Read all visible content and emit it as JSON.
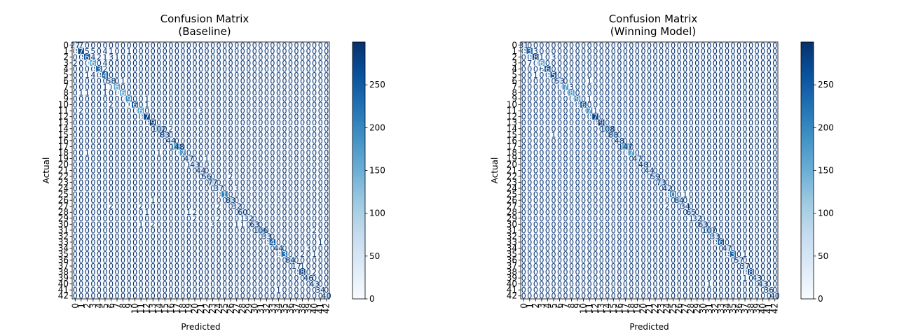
{
  "chart_data": [
    {
      "type": "heatmap",
      "title": "Confusion Matrix",
      "subtitle": "(Baseline)",
      "xlabel": "Predicted",
      "ylabel": "Actual",
      "n_classes": 43,
      "colormap": "Blues",
      "colorbar": {
        "min": 0,
        "max": 300,
        "ticks": [
          0,
          50,
          100,
          150,
          200,
          250
        ]
      },
      "diagonal": [
        27,
        270,
        266,
        164,
        235,
        242,
        58,
        162,
        163,
        196,
        263,
        166,
        278,
        296,
        102,
        83,
        44,
        148,
        172,
        47,
        43,
        44,
        56,
        77,
        37,
        210,
        83,
        32,
        60,
        32,
        63,
        106,
        33,
        247,
        44,
        232,
        84,
        17,
        281,
        46,
        43,
        34,
        40
      ],
      "off_diagonal": [
        {
          "row": 0,
          "col": 1,
          "value": 7
        },
        {
          "row": 1,
          "col": 2,
          "value": 5
        },
        {
          "row": 1,
          "col": 3,
          "value": 5
        },
        {
          "row": 1,
          "col": 5,
          "value": 4
        },
        {
          "row": 1,
          "col": 6,
          "value": 1
        },
        {
          "row": 1,
          "col": 9,
          "value": 1
        },
        {
          "row": 2,
          "col": 3,
          "value": 4
        },
        {
          "row": 2,
          "col": 4,
          "value": 2
        },
        {
          "row": 2,
          "col": 5,
          "value": 1
        },
        {
          "row": 2,
          "col": 6,
          "value": 3
        },
        {
          "row": 2,
          "col": 7,
          "value": 1
        },
        {
          "row": 3,
          "col": 0,
          "value": 2
        },
        {
          "row": 3,
          "col": 5,
          "value": 4
        },
        {
          "row": 4,
          "col": 5,
          "value": 2
        },
        {
          "row": 5,
          "col": 2,
          "value": 1
        },
        {
          "row": 5,
          "col": 3,
          "value": 4
        },
        {
          "row": 6,
          "col": 8,
          "value": 1
        },
        {
          "row": 7,
          "col": 5,
          "value": 1
        },
        {
          "row": 7,
          "col": 6,
          "value": 1
        },
        {
          "row": 8,
          "col": 1,
          "value": 1
        },
        {
          "row": 8,
          "col": 2,
          "value": 1
        },
        {
          "row": 8,
          "col": 5,
          "value": 1
        },
        {
          "row": 9,
          "col": 12,
          "value": 1
        },
        {
          "row": 10,
          "col": 6,
          "value": 2
        },
        {
          "row": 10,
          "col": 9,
          "value": 1
        },
        {
          "row": 10,
          "col": 12,
          "value": 1
        },
        {
          "row": 11,
          "col": 1,
          "value": 2
        },
        {
          "row": 11,
          "col": 21,
          "value": 3
        },
        {
          "row": 14,
          "col": 16,
          "value": 2
        },
        {
          "row": 18,
          "col": 2,
          "value": 1
        },
        {
          "row": 18,
          "col": 14,
          "value": 1
        },
        {
          "row": 19,
          "col": 22,
          "value": 1
        },
        {
          "row": 20,
          "col": 19,
          "value": 1
        },
        {
          "row": 22,
          "col": 26,
          "value": 2
        },
        {
          "row": 24,
          "col": 27,
          "value": 3
        },
        {
          "row": 26,
          "col": 13,
          "value": 1
        },
        {
          "row": 27,
          "col": 6,
          "value": 2
        },
        {
          "row": 27,
          "col": 11,
          "value": 2
        },
        {
          "row": 27,
          "col": 24,
          "value": 2
        },
        {
          "row": 28,
          "col": 12,
          "value": 1
        },
        {
          "row": 28,
          "col": 19,
          "value": 1
        },
        {
          "row": 28,
          "col": 20,
          "value": 2
        },
        {
          "row": 29,
          "col": 20,
          "value": 2
        },
        {
          "row": 29,
          "col": 24,
          "value": 2
        },
        {
          "row": 29,
          "col": 28,
          "value": 1
        },
        {
          "row": 30,
          "col": 11,
          "value": 1
        },
        {
          "row": 30,
          "col": 13,
          "value": 2
        },
        {
          "row": 30,
          "col": 23,
          "value": 3
        },
        {
          "row": 30,
          "col": 27,
          "value": 1
        },
        {
          "row": 30,
          "col": 28,
          "value": 1
        },
        {
          "row": 31,
          "col": 40,
          "value": 2
        },
        {
          "row": 33,
          "col": 41,
          "value": 1
        },
        {
          "row": 34,
          "col": 39,
          "value": 3
        },
        {
          "row": 35,
          "col": 38,
          "value": 2
        },
        {
          "row": 35,
          "col": 40,
          "value": 1
        },
        {
          "row": 37,
          "col": 38,
          "value": 1
        },
        {
          "row": 38,
          "col": 40,
          "value": 2
        },
        {
          "row": 41,
          "col": 34,
          "value": 1
        }
      ]
    },
    {
      "type": "heatmap",
      "title": "Confusion Matrix",
      "subtitle": "(Winning Model)",
      "xlabel": "Predicted",
      "ylabel": "Actual",
      "n_classes": 43,
      "colormap": "Blues",
      "colorbar": {
        "min": 0,
        "max": 300,
        "ticks": [
          0,
          50,
          100,
          150,
          200,
          250
        ]
      },
      "diagonal": [
        31,
        238,
        289,
        163,
        260,
        259,
        53,
        171,
        183,
        196,
        263,
        177,
        278,
        295,
        108,
        88,
        48,
        147,
        172,
        47,
        48,
        44,
        59,
        73,
        42,
        208,
        84,
        34,
        65,
        32,
        63,
        107,
        33,
        266,
        47,
        232,
        57,
        37,
        281,
        43,
        43,
        36,
        40
      ],
      "off_diagonal": [
        {
          "row": 1,
          "col": 2,
          "value": 3
        },
        {
          "row": 2,
          "col": 3,
          "value": 1
        },
        {
          "row": 2,
          "col": 5,
          "value": 3
        },
        {
          "row": 3,
          "col": 1,
          "value": 7
        },
        {
          "row": 4,
          "col": 3,
          "value": 6
        },
        {
          "row": 5,
          "col": 2,
          "value": 1
        },
        {
          "row": 6,
          "col": 11,
          "value": 1
        },
        {
          "row": 7,
          "col": 8,
          "value": 3
        },
        {
          "row": 9,
          "col": 11,
          "value": 1
        },
        {
          "row": 11,
          "col": 12,
          "value": 1
        },
        {
          "row": 15,
          "col": 5,
          "value": 1
        },
        {
          "row": 25,
          "col": 27,
          "value": 1
        },
        {
          "row": 27,
          "col": 24,
          "value": 2
        },
        {
          "row": 29,
          "col": 28,
          "value": 1
        },
        {
          "row": 35,
          "col": 37,
          "value": 1
        },
        {
          "row": 39,
          "col": 37,
          "value": 1
        },
        {
          "row": 40,
          "col": 31,
          "value": 1
        }
      ]
    }
  ]
}
